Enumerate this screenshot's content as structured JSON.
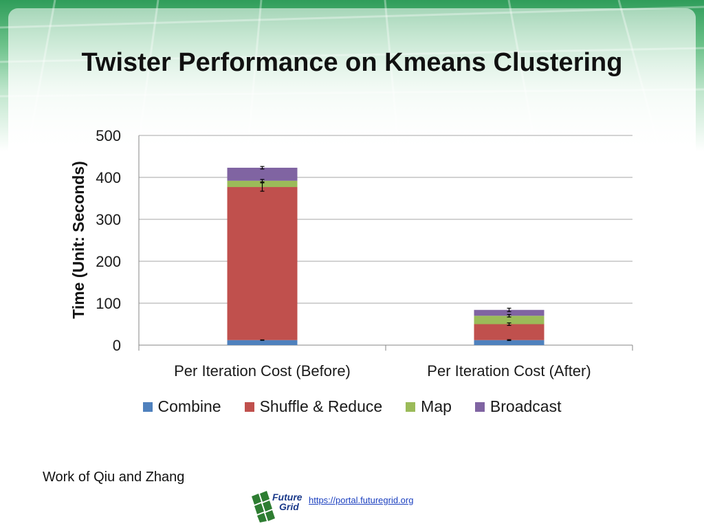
{
  "slide": {
    "title": "Twister Performance on Kmeans Clustering",
    "credit": "Work of Qiu and Zhang",
    "link": "https://portal.futuregrid.org",
    "logo": {
      "line1": "Future",
      "line2": "Grid",
      "icon": "futuregrid-logo"
    }
  },
  "colors": {
    "combine": "#4f81bd",
    "shuffle_reduce": "#c0504d",
    "map": "#9bbb59",
    "broadcast": "#8064a2",
    "grid": "#a6a6a6"
  },
  "chart_data": {
    "type": "bar",
    "stacked": true,
    "title": "",
    "xlabel": "",
    "ylabel": "Time (Unit: Seconds)",
    "ylim": [
      0,
      500
    ],
    "yticks": [
      0,
      100,
      200,
      300,
      400,
      500
    ],
    "grid": true,
    "legend_position": "bottom",
    "categories": [
      "Per Iteration Cost (Before)",
      "Per Iteration Cost (After)"
    ],
    "series": [
      {
        "name": "Combine",
        "values": [
          12,
          12
        ],
        "error": [
          0.5,
          1
        ]
      },
      {
        "name": "Shuffle & Reduce",
        "values": [
          365,
          38
        ],
        "error": [
          10,
          3
        ]
      },
      {
        "name": "Map",
        "values": [
          15,
          20
        ],
        "error": [
          3,
          3
        ]
      },
      {
        "name": "Broadcast",
        "values": [
          31,
          14
        ],
        "error": [
          3,
          4
        ]
      }
    ]
  }
}
